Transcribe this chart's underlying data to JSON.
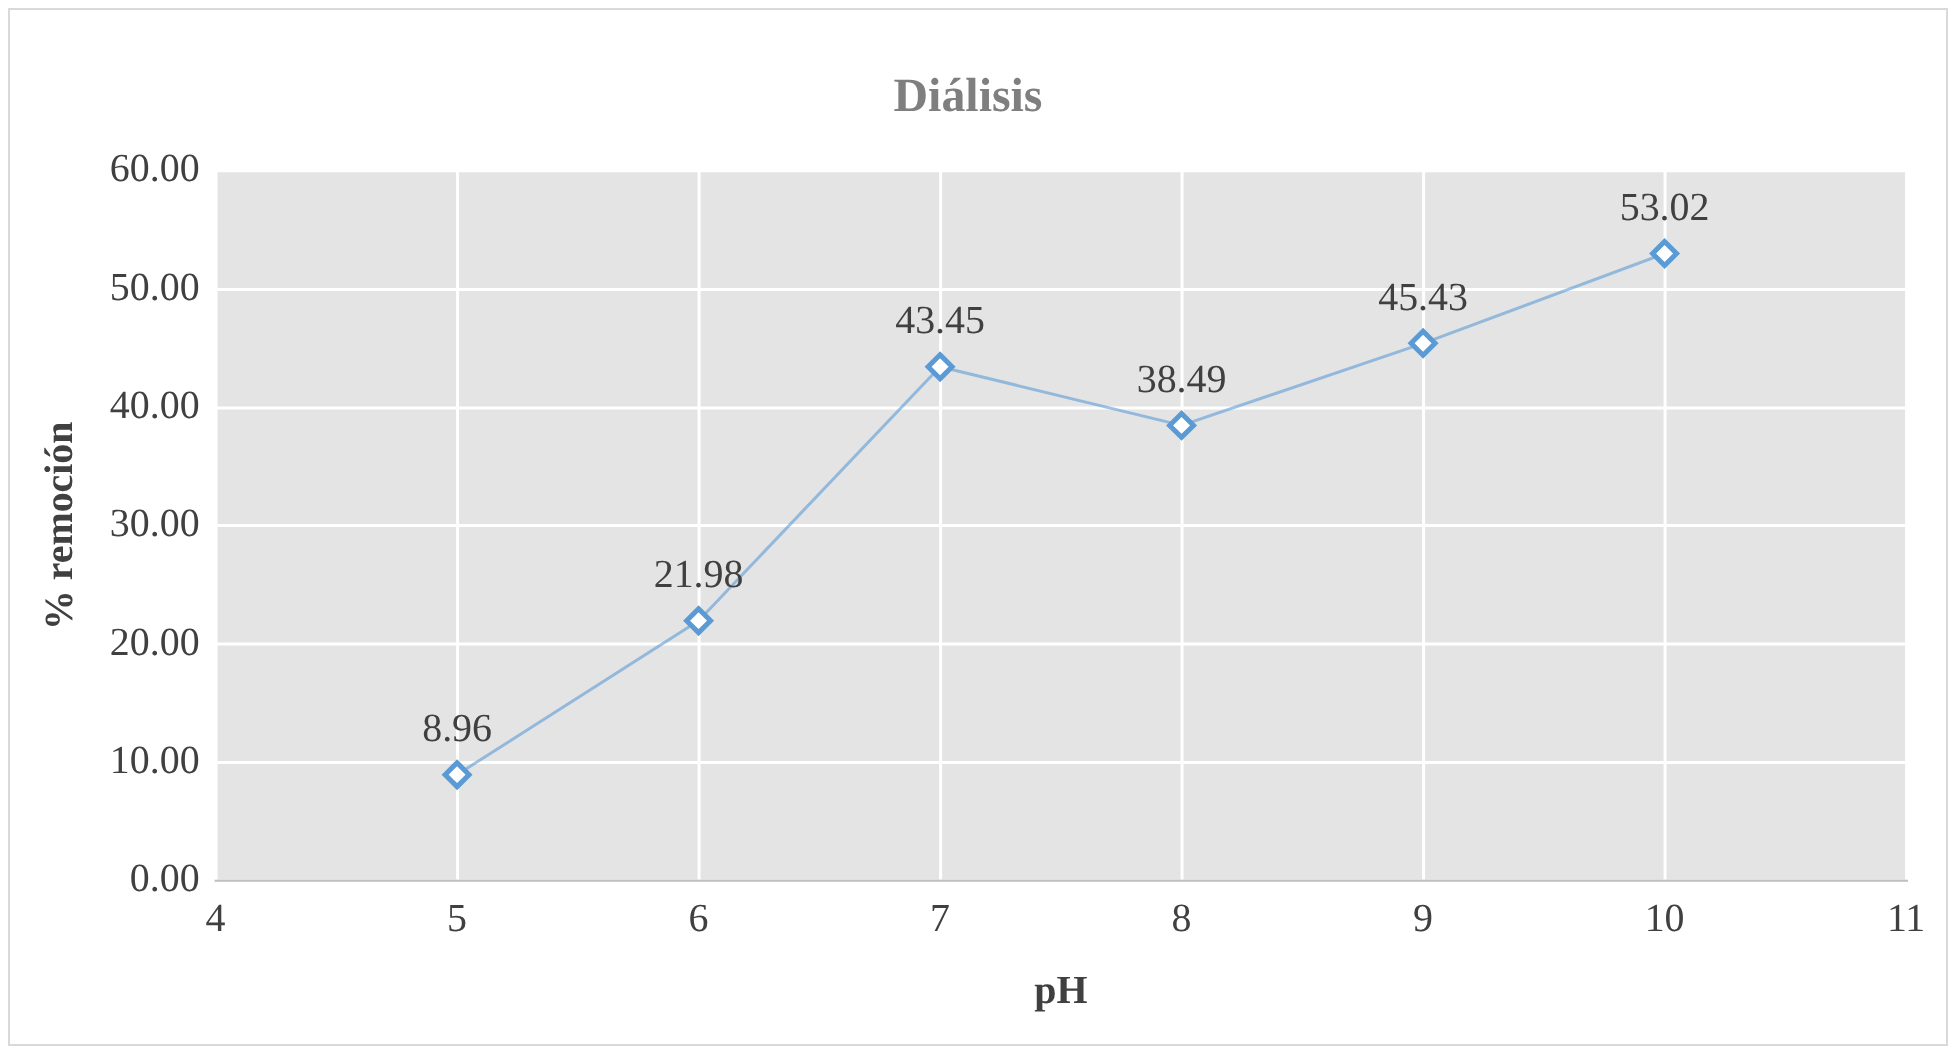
{
  "chart_data": {
    "type": "line",
    "title": "Diálisis",
    "xlabel": "pH",
    "ylabel": "% remoción",
    "x": [
      5,
      6,
      7,
      8,
      9,
      10
    ],
    "series": [
      {
        "color": "#5b9bd5",
        "values": [
          8.96,
          21.98,
          43.45,
          38.49,
          45.43,
          53.02
        ]
      }
    ],
    "xlim": [
      4,
      11
    ],
    "xticks": [
      4,
      5,
      6,
      7,
      8,
      9,
      10,
      11
    ],
    "ylim": [
      0,
      60
    ],
    "yticks": [
      {
        "value": 0,
        "label": "0.00"
      },
      {
        "value": 10,
        "label": "10.00"
      },
      {
        "value": 20,
        "label": "20.00"
      },
      {
        "value": 30,
        "label": "30.00"
      },
      {
        "value": 40,
        "label": "40.00"
      },
      {
        "value": 50,
        "label": "50.00"
      },
      {
        "value": 60,
        "label": "60.00"
      }
    ],
    "grid": true,
    "legend": false,
    "marker": "diamond",
    "line_style": "solid",
    "data_labels": true
  }
}
